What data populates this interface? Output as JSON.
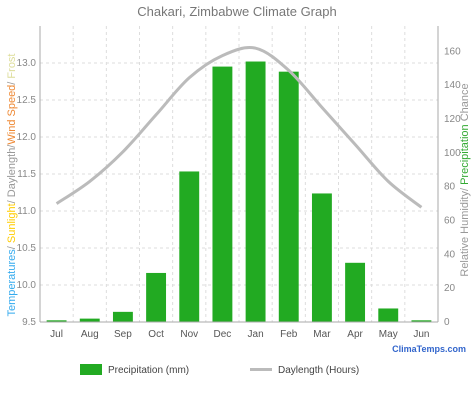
{
  "chart_data": {
    "type": "bar",
    "title": "Chakari, Zimbabwe Climate Graph",
    "categories": [
      "Jul",
      "Aug",
      "Sep",
      "Oct",
      "Nov",
      "Dec",
      "Jan",
      "Feb",
      "Mar",
      "Apr",
      "May",
      "Jun"
    ],
    "left_axis": {
      "ticks": [
        "9.5",
        "10.0",
        "10.5",
        "11.0",
        "11.5",
        "12.0",
        "12.5",
        "13.0"
      ],
      "ylim": [
        9.5,
        13.5
      ],
      "label_parts": [
        {
          "text": "Temperatures",
          "color": "#33aaee"
        },
        {
          "text": "/ ",
          "color": "#999999"
        },
        {
          "text": "Sunlight",
          "color": "#ffcc00"
        },
        {
          "text": "/ ",
          "color": "#999999"
        },
        {
          "text": "Daylength",
          "color": "#999999"
        },
        {
          "text": "/",
          "color": "#999999"
        },
        {
          "text": "Wind Speed",
          "color": "#ee8833"
        },
        {
          "text": "/ ",
          "color": "#999999"
        },
        {
          "text": "Frost",
          "color": "#dddd99"
        }
      ]
    },
    "right_axis": {
      "ticks": [
        "0",
        "20",
        "40",
        "60",
        "80",
        "100",
        "120",
        "140",
        "160"
      ],
      "ylim": [
        0,
        175
      ],
      "label_parts": [
        {
          "text": "Relative Humidity",
          "color": "#999999"
        },
        {
          "text": "/ ",
          "color": "#999999"
        },
        {
          "text": "Precipitation",
          "color": "#33aa33"
        },
        {
          "text": " ",
          "color": "#999999"
        },
        {
          "text": "Chance",
          "color": "#999999"
        }
      ]
    },
    "series": [
      {
        "name": "Precipitation (mm)",
        "type": "bar",
        "axis": "right",
        "color": "#22aa22",
        "values": [
          1,
          2,
          6,
          29,
          89,
          151,
          154,
          148,
          76,
          35,
          8,
          1
        ]
      },
      {
        "name": "Daylength (Hours)",
        "type": "line",
        "axis": "left",
        "color": "#bbbbbb",
        "values": [
          11.1,
          11.4,
          11.8,
          12.3,
          12.8,
          13.1,
          13.2,
          12.9,
          12.4,
          11.9,
          11.4,
          11.05
        ]
      }
    ],
    "grid": true,
    "legend_position": "bottom",
    "brand": "ClimaTemps.com"
  }
}
